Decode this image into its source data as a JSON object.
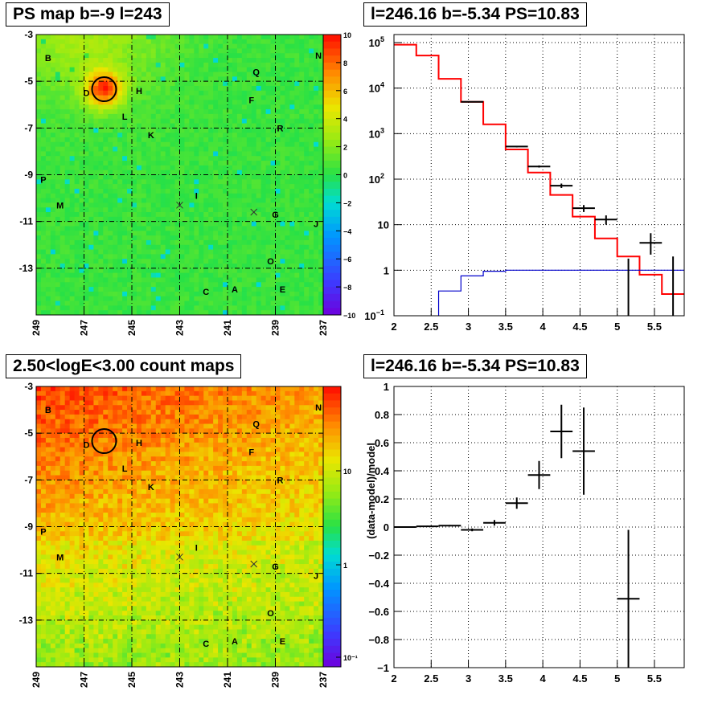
{
  "panels": {
    "ps_map": {
      "title": "PS map b=-9 l=243"
    },
    "spectrum": {
      "title": "l=246.16 b=-5.34 PS=10.83"
    },
    "count_map": {
      "title": "2.50<logE<3.00 count maps"
    },
    "residual": {
      "title": "l=246.16 b=-5.34 PS=10.83"
    }
  },
  "map_axes": {
    "x_ticks": [
      "249",
      "247",
      "245",
      "243",
      "241",
      "239",
      "237"
    ],
    "y_ticks": [
      "-3",
      "-5",
      "-7",
      "-9",
      "-11",
      "-13"
    ]
  },
  "source_labels": [
    {
      "label": "B",
      "l": 248.5,
      "b": -4.0
    },
    {
      "label": "N",
      "l": 237.2,
      "b": -3.9
    },
    {
      "label": "Q",
      "l": 239.8,
      "b": -4.6
    },
    {
      "label": "D",
      "l": 246.9,
      "b": -5.5
    },
    {
      "label": "H",
      "l": 244.7,
      "b": -5.4
    },
    {
      "label": "F",
      "l": 240.0,
      "b": -5.8
    },
    {
      "label": "L",
      "l": 245.3,
      "b": -6.5
    },
    {
      "label": "R",
      "l": 238.8,
      "b": -7.0
    },
    {
      "label": "K",
      "l": 244.2,
      "b": -7.3
    },
    {
      "label": "P",
      "l": 248.7,
      "b": -9.2
    },
    {
      "label": "I",
      "l": 242.3,
      "b": -9.9
    },
    {
      "label": "M",
      "l": 248.0,
      "b": -10.3
    },
    {
      "label": "G",
      "l": 239.0,
      "b": -10.7
    },
    {
      "label": "J",
      "l": 237.3,
      "b": -11.1
    },
    {
      "label": "O",
      "l": 239.2,
      "b": -12.7
    },
    {
      "label": "C",
      "l": 241.9,
      "b": -14.0
    },
    {
      "label": "A",
      "l": 240.7,
      "b": -13.9
    },
    {
      "label": "E",
      "l": 238.7,
      "b": -13.9
    }
  ],
  "crosses": [
    {
      "l": 243.0,
      "b": -10.3
    },
    {
      "l": 239.9,
      "b": -10.6
    }
  ],
  "circle": {
    "l": 246.16,
    "b": -5.34
  },
  "colorbars": {
    "ps": {
      "ticks": [
        "10",
        "8",
        "6",
        "4",
        "2",
        "0",
        "−2",
        "−4",
        "−6",
        "−8",
        "−10"
      ]
    },
    "count": {
      "ticks": [
        "10",
        "1",
        "10⁻¹"
      ]
    }
  },
  "colors": {
    "model_red": "#ff0000",
    "background_blue": "#0000cc",
    "data_black": "#000000"
  },
  "chart_data": [
    {
      "type": "heatmap",
      "title": "PS map b=-9 l=243",
      "x_ticks": [
        "249",
        "247",
        "245",
        "243",
        "241",
        "239",
        "237"
      ],
      "y_ticks": [
        "-3",
        "-5",
        "-7",
        "-9",
        "-11",
        "-13"
      ],
      "xlim": [
        249,
        237
      ],
      "ylim": [
        -3,
        -15
      ],
      "zlim": [
        -10,
        10
      ],
      "grid": true
    },
    {
      "type": "line",
      "title": "l=246.16 b=-5.34 PS=10.83",
      "log_y": true,
      "xlim": [
        2,
        5.9
      ],
      "ylim": [
        0.1,
        150000
      ],
      "x_ticks": [
        "2",
        "2.5",
        "3",
        "3.5",
        "4",
        "4.5",
        "5",
        "5.5"
      ],
      "y_ticks": [
        "10⁻¹",
        "1",
        "10",
        "10²",
        "10³",
        "10⁴",
        "10⁵"
      ],
      "series": [
        {
          "kind": "data",
          "points": [
            {
              "x": 3.05,
              "y": 5000,
              "xerr": 0.15,
              "ylo": 4930,
              "yhi": 5070
            },
            {
              "x": 3.65,
              "y": 520,
              "xerr": 0.15,
              "ylo": 500,
              "yhi": 540
            },
            {
              "x": 3.95,
              "y": 190,
              "xerr": 0.15,
              "ylo": 180,
              "yhi": 200
            },
            {
              "x": 4.25,
              "y": 72,
              "xerr": 0.15,
              "ylo": 64,
              "yhi": 80
            },
            {
              "x": 4.55,
              "y": 23,
              "xerr": 0.15,
              "ylo": 19,
              "yhi": 27
            },
            {
              "x": 4.85,
              "y": 13,
              "xerr": 0.15,
              "ylo": 10,
              "yhi": 16
            },
            {
              "x": 5.45,
              "y": 4,
              "xerr": 0.15,
              "ylo": 2.2,
              "yhi": 6.5
            },
            {
              "x": 5.15,
              "y": 0.1,
              "xerr": 0,
              "ylo": 0.1,
              "yhi": 1.8
            },
            {
              "x": 5.75,
              "y": 0.1,
              "xerr": 0,
              "ylo": 0.1,
              "yhi": 2.0
            }
          ]
        },
        {
          "kind": "model",
          "edges": [
            2.0,
            2.3,
            2.6,
            2.9,
            3.2,
            3.5,
            3.8,
            4.1,
            4.4,
            4.7,
            5.0,
            5.3,
            5.6,
            5.9
          ],
          "values": [
            90000,
            52000,
            16000,
            5000,
            1600,
            450,
            140,
            45,
            15,
            5,
            2,
            0.8,
            0.3
          ]
        },
        {
          "kind": "background",
          "edges": [
            2.6,
            2.9,
            3.2,
            3.5,
            3.8,
            4.1,
            4.4,
            4.7,
            5.0,
            5.3,
            5.6,
            5.9
          ],
          "values": [
            0.35,
            0.75,
            0.95,
            1.0,
            1.0,
            1.0,
            1.0,
            1.0,
            1.0,
            1.0,
            1.0
          ]
        }
      ],
      "grid": true
    },
    {
      "type": "heatmap",
      "title": "2.50<logE<3.00 count maps",
      "x_ticks": [
        "249",
        "247",
        "245",
        "243",
        "241",
        "239",
        "237"
      ],
      "y_ticks": [
        "-3",
        "-5",
        "-7",
        "-9",
        "-11",
        "-13"
      ],
      "xlim": [
        249,
        237
      ],
      "ylim": [
        -3,
        -15
      ],
      "log_z": true,
      "grid": true
    },
    {
      "type": "scatter",
      "title": "l=246.16 b=-5.34 PS=10.83",
      "ylabel": "(data-model)/model",
      "xlim": [
        2,
        5.9
      ],
      "ylim": [
        -1,
        1
      ],
      "x_ticks": [
        "2",
        "2.5",
        "3",
        "3.5",
        "4",
        "4.5",
        "5",
        "5.5"
      ],
      "y_ticks": [
        "1",
        "0.8",
        "0.6",
        "0.4",
        "0.2",
        "0",
        "−0.2",
        "−0.4",
        "−0.6",
        "−0.8",
        "−1"
      ],
      "points": [
        {
          "x": 2.15,
          "y": 0.0,
          "xerr": 0.15,
          "yerr": 0.005
        },
        {
          "x": 2.45,
          "y": 0.005,
          "xerr": 0.15,
          "yerr": 0.005
        },
        {
          "x": 2.75,
          "y": 0.01,
          "xerr": 0.15,
          "yerr": 0.005
        },
        {
          "x": 3.05,
          "y": -0.02,
          "xerr": 0.15,
          "yerr": 0.01
        },
        {
          "x": 3.35,
          "y": 0.03,
          "xerr": 0.15,
          "yerr": 0.02
        },
        {
          "x": 3.65,
          "y": 0.17,
          "xerr": 0.15,
          "yerr": 0.04
        },
        {
          "x": 3.95,
          "y": 0.37,
          "xerr": 0.15,
          "yerr": 0.1
        },
        {
          "x": 4.25,
          "y": 0.68,
          "xerr": 0.15,
          "yerr": 0.19
        },
        {
          "x": 4.55,
          "y": 0.54,
          "xerr": 0.15,
          "yerr": 0.31
        },
        {
          "x": 5.15,
          "y": -0.51,
          "xerr": 0.15,
          "yerr": 0.49
        }
      ],
      "grid": true
    }
  ]
}
